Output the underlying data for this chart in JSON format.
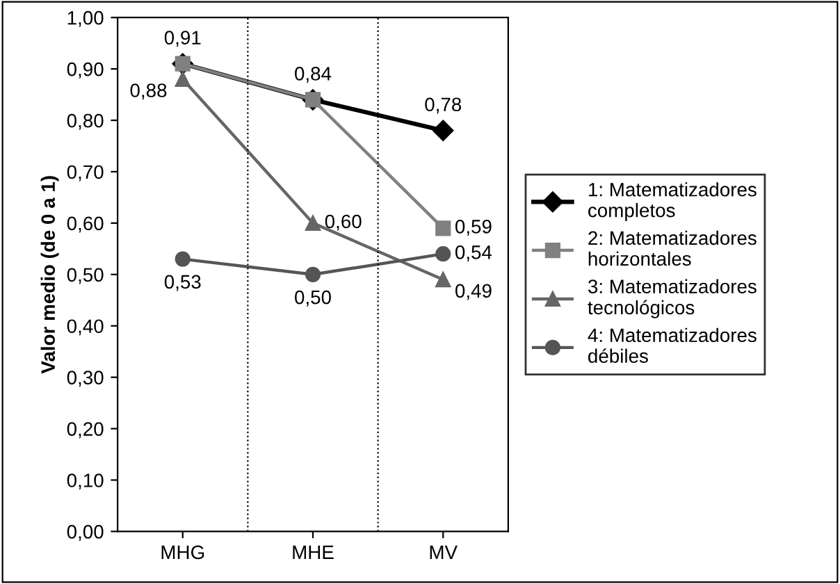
{
  "chart_data": {
    "type": "line",
    "ylabel": "Valor medio (de 0 a 1)",
    "categories": [
      "MHG",
      "MHE",
      "MV"
    ],
    "ylim": [
      0,
      1
    ],
    "yticks": [
      {
        "value": 0,
        "label": "0,00"
      },
      {
        "value": 0.1,
        "label": "0,10"
      },
      {
        "value": 0.2,
        "label": "0,20"
      },
      {
        "value": 0.3,
        "label": "0,30"
      },
      {
        "value": 0.4,
        "label": "0,40"
      },
      {
        "value": 0.5,
        "label": "0,50"
      },
      {
        "value": 0.6,
        "label": "0,60"
      },
      {
        "value": 0.7,
        "label": "0,70"
      },
      {
        "value": 0.8,
        "label": "0,80"
      },
      {
        "value": 0.9,
        "label": "0,90"
      },
      {
        "value": 1,
        "label": "1,00"
      }
    ],
    "grid": "x",
    "legend": "right",
    "series": [
      {
        "name": "1: Matematizadores\ncompletos",
        "color": "#000000",
        "marker": "diamond",
        "values": [
          0.91,
          0.84,
          0.78
        ],
        "value_labels": [
          "0,91",
          "0,84",
          "0,78"
        ]
      },
      {
        "name": "2: Matematizadores\nhorizontales",
        "color": "#808080",
        "marker": "square",
        "values": [
          0.91,
          0.84,
          0.59
        ],
        "value_labels": [
          null,
          null,
          "0,59"
        ]
      },
      {
        "name": "3: Matematizadores\ntecnológicos",
        "color": "#666666",
        "marker": "triangle",
        "values": [
          0.88,
          0.6,
          0.49
        ],
        "value_labels": [
          "0,88",
          "0,60",
          "0,49"
        ]
      },
      {
        "name": "4: Matematizadores\ndébiles",
        "color": "#555555",
        "marker": "circle",
        "values": [
          0.53,
          0.5,
          0.54
        ],
        "value_labels": [
          "0,53",
          "0,50",
          "0,54"
        ]
      }
    ]
  }
}
